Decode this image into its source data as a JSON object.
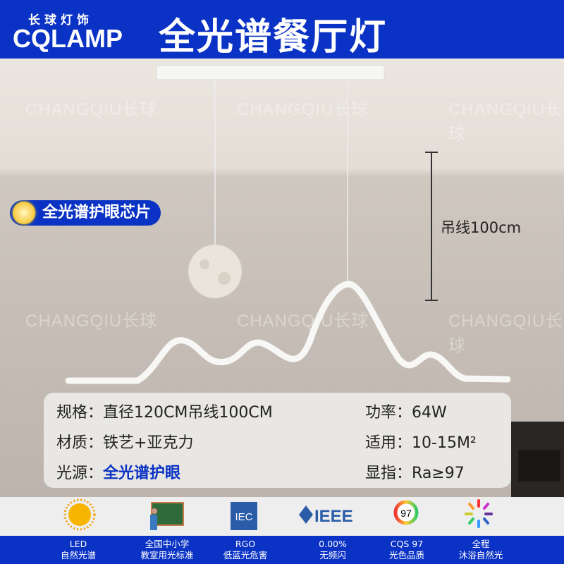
{
  "header": {
    "brand_cn": "长球灯饰",
    "brand_en": "CQLAMP",
    "title": "全光谱餐厅灯"
  },
  "watermark": "CHANGQIU长球",
  "badge": {
    "icon": "sun-chip-icon",
    "label": "全光谱护眼芯片"
  },
  "dimension": {
    "label": "吊线100cm"
  },
  "specs": [
    {
      "label": "规格：",
      "value": "直径120CM吊线100CM"
    },
    {
      "label": "功率：",
      "value": "64W"
    },
    {
      "label": "材质：",
      "value": "铁艺+亚克力"
    },
    {
      "label": "适用：",
      "value": "10-15M²"
    },
    {
      "label": "光源：",
      "value": "全光谱护眼"
    },
    {
      "label": "显指：",
      "value": "Ra≥97"
    }
  ],
  "features": [
    {
      "icon": "sun-icon",
      "line1": "LED",
      "line2": "自然光谱"
    },
    {
      "icon": "teacher-blackboard-icon",
      "line1": "全国中小学",
      "line2": "教室用光标准"
    },
    {
      "icon": "iec-logo-icon",
      "logo_text": "IEC",
      "line1": "RGO",
      "line2": "低蓝光危害"
    },
    {
      "icon": "ieee-logo-icon",
      "logo_text": "IEEE",
      "line1": "0.00%",
      "line2": "无频闪"
    },
    {
      "icon": "cqs-gauge-icon",
      "logo_text": "97",
      "line1": "CQS 97",
      "line2": "光色品质"
    },
    {
      "icon": "color-spectrum-icon",
      "line1": "全程",
      "line2": "沐浴自然光"
    }
  ],
  "colors": {
    "brand_blue": "#0a32c4"
  }
}
